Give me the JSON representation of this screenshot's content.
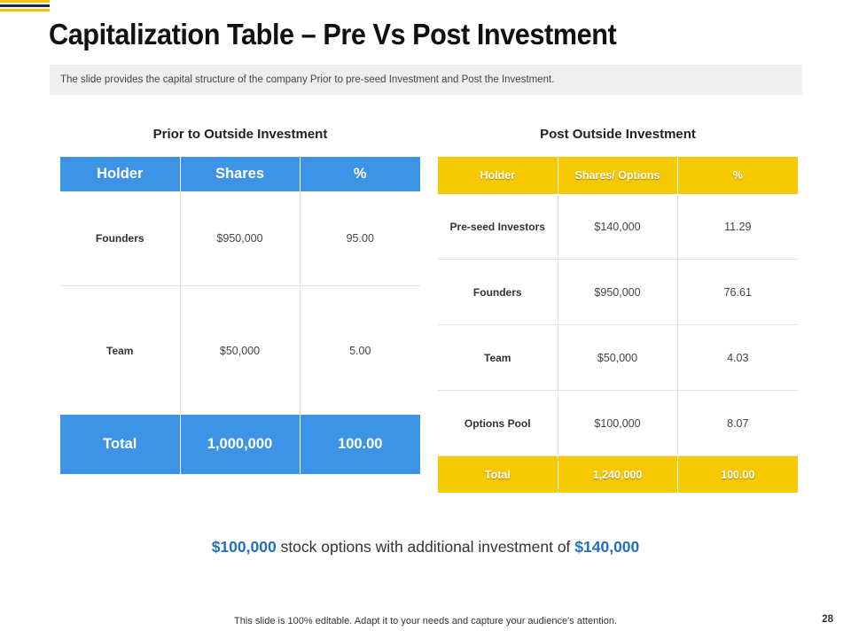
{
  "colors": {
    "blue": "#3d94e6",
    "yellow": "#f6c800",
    "highlight": "#1f6fbf",
    "navy": "#1b2a55"
  },
  "title": "Capitalization Table – Pre Vs Post Investment",
  "subtitle": "The slide provides the capital structure of the company Prior  to pre-seed  Investment and Post the Investment.",
  "pre": {
    "heading": "Prior to Outside Investment",
    "headers": [
      "Holder",
      "Shares",
      "%"
    ],
    "rows": [
      [
        "Founders",
        "$950,000",
        "95.00"
      ],
      [
        "Team",
        "$50,000",
        "5.00"
      ]
    ],
    "total": [
      "Total",
      "1,000,000",
      "100.00"
    ]
  },
  "post": {
    "heading": "Post Outside Investment",
    "headers": [
      "Holder",
      "Shares/ Options",
      "%"
    ],
    "rows": [
      [
        "Pre-seed Investors",
        "$140,000",
        "11.29"
      ],
      [
        "Founders",
        "$950,000",
        "76.61"
      ],
      [
        "Team",
        "$50,000",
        "4.03"
      ],
      [
        "Options Pool",
        "$100,000",
        "8.07"
      ]
    ],
    "total": [
      "Total",
      "1,240,000",
      "100.00"
    ]
  },
  "note": {
    "amount1": "$100,000",
    "middle": " stock options with additional investment of ",
    "amount2": "$140,000"
  },
  "footer": "This slide is 100% editable. Adapt it to your needs and capture your audience's attention.",
  "page_number": "28"
}
